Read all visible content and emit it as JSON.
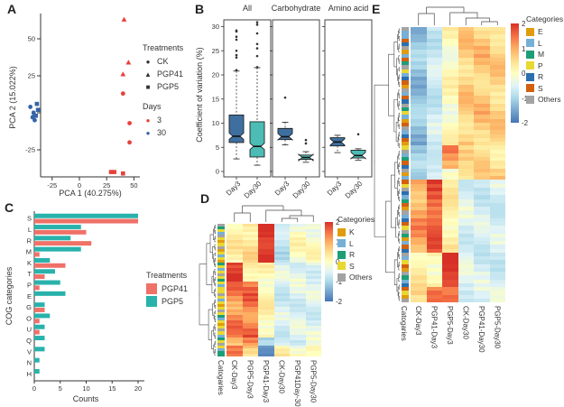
{
  "panels": {
    "a": "A",
    "b": "B",
    "c": "C",
    "d": "D",
    "e": "E"
  },
  "chart_data": [
    {
      "panel": "A",
      "type": "scatter",
      "xlabel": "PCA 1 (40.275%)",
      "ylabel": "PCA 2 (15.022%)",
      "xticks": [
        -25,
        0,
        25,
        50
      ],
      "yticks": [
        -25,
        0,
        25,
        50
      ],
      "legend": {
        "treatments_title": "Treatments",
        "treatments": [
          {
            "label": "CK",
            "marker": "circle",
            "glyph": "●"
          },
          {
            "label": "PGP41",
            "marker": "triangle",
            "glyph": "▲"
          },
          {
            "label": "PGP5",
            "marker": "square",
            "glyph": "■"
          }
        ],
        "days_title": "Days",
        "days": [
          {
            "label": "3",
            "color": "#e8403a",
            "glyph": "●"
          },
          {
            "label": "30",
            "color": "#3564a9",
            "glyph": "●"
          }
        ]
      },
      "day_colors": {
        "3": "#e8403a",
        "30": "#3564a9"
      },
      "points": [
        {
          "x": 41,
          "y": 63,
          "marker": "triangle",
          "day": "3"
        },
        {
          "x": 45,
          "y": 34,
          "marker": "triangle",
          "day": "3"
        },
        {
          "x": 40,
          "y": 26,
          "marker": "triangle",
          "day": "3"
        },
        {
          "x": 40,
          "y": 13,
          "marker": "circle",
          "day": "3"
        },
        {
          "x": 46,
          "y": -7,
          "marker": "circle",
          "day": "3"
        },
        {
          "x": 46,
          "y": -20,
          "marker": "circle",
          "day": "3"
        },
        {
          "x": 29,
          "y": -40,
          "marker": "square",
          "day": "3"
        },
        {
          "x": 32,
          "y": -40,
          "marker": "square",
          "day": "3"
        },
        {
          "x": 40,
          "y": -41,
          "marker": "square",
          "day": "3"
        },
        {
          "x": -45,
          "y": 4,
          "marker": "circle",
          "day": "30"
        },
        {
          "x": -42,
          "y": 0,
          "marker": "circle",
          "day": "30"
        },
        {
          "x": -43,
          "y": -3,
          "marker": "circle",
          "day": "30"
        },
        {
          "x": -41,
          "y": -5,
          "marker": "circle",
          "day": "30"
        },
        {
          "x": -39,
          "y": 6,
          "marker": "square",
          "day": "30"
        },
        {
          "x": -38,
          "y": 2,
          "marker": "square",
          "day": "30"
        },
        {
          "x": -40,
          "y": -2,
          "marker": "square",
          "day": "30"
        }
      ]
    },
    {
      "panel": "B",
      "type": "boxplot",
      "ylabel": "Coefficient of variation (%)",
      "yticks": [
        0,
        5,
        10,
        15,
        20,
        25,
        30
      ],
      "ylim": [
        0,
        31.5
      ],
      "group_labels": [
        "Day3",
        "Day30"
      ],
      "group_colors": {
        "Day3": "#3e6f9f",
        "Day30": "#4cbcb4"
      },
      "facets": [
        {
          "title": "All",
          "boxes": [
            {
              "group": "Day3",
              "whislo": 2.6,
              "q1": 6.0,
              "med": 7.3,
              "q3": 11.7,
              "whishi": 20.8,
              "outliers": [
                21.0,
                23.6,
                24.1,
                25.0,
                27.3,
                27.9,
                29.0,
                29.2
              ]
            },
            {
              "group": "Day30",
              "whislo": 1.3,
              "q1": 3.0,
              "med": 5.2,
              "q3": 10.3,
              "whishi": 21.5,
              "outliers": [
                21.6,
                23.9,
                25.5,
                26.4,
                28.6,
                30.4,
                30.9
              ]
            }
          ]
        },
        {
          "title": "Carbohydrate",
          "boxes": [
            {
              "group": "Day3",
              "whislo": 5.5,
              "q1": 6.6,
              "med": 7.2,
              "q3": 8.9,
              "whishi": 10.2,
              "outliers": [
                15.3
              ]
            },
            {
              "group": "Day30",
              "whislo": 1.9,
              "q1": 2.5,
              "med": 2.9,
              "q3": 3.4,
              "whishi": 4.1,
              "outliers": [
                5.8,
                6.5
              ]
            }
          ]
        },
        {
          "title": "Amino acid",
          "boxes": [
            {
              "group": "Day3",
              "whislo": 3.9,
              "q1": 5.3,
              "med": 6.1,
              "q3": 7.0,
              "whishi": 7.5,
              "outliers": []
            },
            {
              "group": "Day30",
              "whislo": 2.3,
              "q1": 2.8,
              "med": 3.3,
              "q3": 4.4,
              "whishi": 4.7,
              "outliers": [
                7.7
              ]
            }
          ]
        }
      ]
    },
    {
      "panel": "C",
      "type": "bar",
      "xlabel": "Counts",
      "ylabel": "COG categories",
      "xticks": [
        0,
        5,
        10,
        15,
        20
      ],
      "xlim": [
        0,
        21
      ],
      "categories": [
        "S",
        "L",
        "R",
        "M",
        "K",
        "T",
        "P",
        "E",
        "G",
        "O",
        "U",
        "Q",
        "V",
        "N",
        "H"
      ],
      "legend_title": "Treatments",
      "series": [
        {
          "name": "PGP41",
          "color": "#ef7168",
          "values": [
            20,
            10,
            11,
            1,
            6,
            2,
            1,
            0,
            2,
            1,
            1,
            0,
            0,
            0,
            0
          ]
        },
        {
          "name": "PGP5",
          "color": "#29b2ab",
          "values": [
            20,
            9,
            7,
            9,
            3,
            4,
            5,
            6,
            2,
            3,
            2,
            2,
            2,
            1,
            1
          ]
        }
      ]
    },
    {
      "panel": "D",
      "type": "heatmap",
      "columns": [
        "Catogaries",
        "CK-Day3",
        "PGP5-Day3",
        "PGP41-Day3",
        "CK-Day30",
        "PGP41Day-30",
        "PGP5-Day30"
      ],
      "colorbar_ticks": [
        "2",
        "1",
        "0",
        "-1",
        "-2"
      ],
      "legend_title": "Categories",
      "legend": [
        {
          "key": "K",
          "color": "#e09c0d"
        },
        {
          "key": "L",
          "color": "#76b0d6"
        },
        {
          "key": "R",
          "color": "#1d9e76"
        },
        {
          "key": "S",
          "color": "#e8d832"
        },
        {
          "key": "Others",
          "color": "#a3a3a3"
        }
      ],
      "category_colors": {
        "K": "#e09c0d",
        "L": "#76b0d6",
        "R": "#1d9e76",
        "S": "#e8d832",
        "O": "#a3a3a3"
      },
      "row_categories": "ORSLOSKSOKSLSKRSLSOSRSLSSOSLSKSOSRLSKSOSLRSOSLRR",
      "blocks": [
        {
          "rows": 14,
          "values": [
            0.4,
            0.6,
            2.0,
            -0.7,
            0.1,
            0.1
          ]
        },
        {
          "rows": 7,
          "values": [
            2.0,
            0.5,
            0.2,
            -0.4,
            -0.3,
            -0.3
          ]
        },
        {
          "rows": 20,
          "values": [
            1.4,
            1.5,
            0.3,
            -0.5,
            -0.4,
            -0.4
          ]
        },
        {
          "rows": 3,
          "values": [
            1.2,
            1.2,
            -1.1,
            -0.3,
            -0.4,
            -0.3
          ]
        },
        {
          "rows": 4,
          "values": [
            1.7,
            0.9,
            -1.9,
            0.3,
            0.2,
            0.4
          ]
        }
      ]
    },
    {
      "panel": "E",
      "type": "heatmap",
      "columns": [
        "Catogaries",
        "CK-Day3",
        "PGP41-Day3",
        "PGP5-Day3",
        "CK-Day30",
        "PGP41-Day30",
        "PGP5-Day30"
      ],
      "colorbar_ticks": [
        "2",
        "1",
        "0",
        "-1",
        "-2"
      ],
      "legend_title": "Categories",
      "legend": [
        {
          "key": "E",
          "color": "#e09c0d"
        },
        {
          "key": "L",
          "color": "#76b0d6"
        },
        {
          "key": "M",
          "color": "#1d9e76"
        },
        {
          "key": "P",
          "color": "#e8d832"
        },
        {
          "key": "R",
          "color": "#2b6fb0"
        },
        {
          "key": "S",
          "color": "#d2600f"
        },
        {
          "key": "Others",
          "color": "#a3a3a3"
        }
      ],
      "category_colors": {
        "E": "#e09c0d",
        "L": "#76b0d6",
        "M": "#1d9e76",
        "P": "#e8d832",
        "R": "#2b6fb0",
        "S": "#d2600f",
        "O": "#a3a3a3"
      },
      "row_categories": "OLLSROELSMOPLRSEOLSROMPLESOLRSEPOLMSROELSPORLMSEOLRSPOMELSROLPSEOMLRSPEO",
      "blocks": [
        {
          "rows": 31,
          "values": [
            -1.2,
            -0.6,
            0.15,
            0.85,
            0.9,
            0.8
          ]
        },
        {
          "rows": 6,
          "values": [
            -1.0,
            -0.4,
            1.4,
            0.6,
            0.7,
            0.6
          ]
        },
        {
          "rows": 3,
          "values": [
            -1.4,
            -0.6,
            0.3,
            0.8,
            0.7,
            0.7
          ]
        },
        {
          "rows": 19,
          "values": [
            1.2,
            1.7,
            0.4,
            -0.4,
            -0.5,
            -0.5
          ]
        },
        {
          "rows": 9,
          "values": [
            0.4,
            0.3,
            2.0,
            -0.4,
            -0.5,
            -0.5
          ]
        },
        {
          "rows": 4,
          "values": [
            0.6,
            1.3,
            1.6,
            -0.3,
            -0.4,
            -0.4
          ]
        }
      ]
    }
  ]
}
